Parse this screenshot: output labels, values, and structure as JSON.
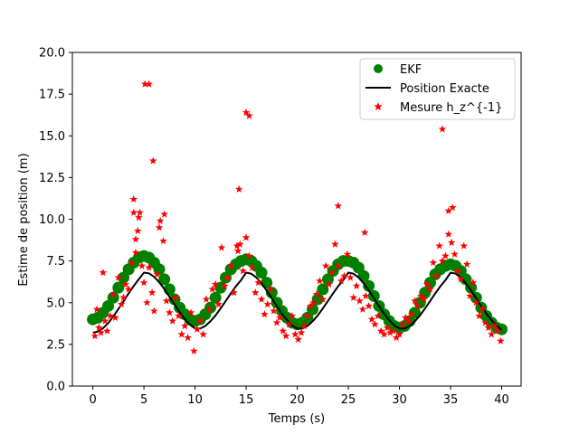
{
  "chart_data": {
    "type": "scatter",
    "title": "",
    "xlabel": "Temps (s)",
    "ylabel": "Estime de position (m)",
    "xlim": [
      -2,
      41.9
    ],
    "ylim": [
      0,
      20
    ],
    "x_ticks": [
      0,
      5,
      10,
      15,
      20,
      25,
      30,
      35,
      40
    ],
    "y_ticks": [
      0.0,
      2.5,
      5.0,
      7.5,
      10.0,
      12.5,
      15.0,
      17.5,
      20.0
    ],
    "x_tick_labels": [
      "0",
      "5",
      "10",
      "15",
      "20",
      "25",
      "30",
      "35",
      "40"
    ],
    "y_tick_labels": [
      "0.0",
      "2.5",
      "5.0",
      "7.5",
      "10.0",
      "12.5",
      "15.0",
      "17.5",
      "20.0"
    ],
    "grid": false,
    "legend_position": "top-right",
    "series": [
      {
        "name": "EKF",
        "kind": "scatter",
        "marker": "circle",
        "color": "#008000",
        "x": [
          0.0,
          0.5,
          1.0,
          1.5,
          2.0,
          2.5,
          3.0,
          3.5,
          4.0,
          4.5,
          5.0,
          5.5,
          6.0,
          6.5,
          7.0,
          7.5,
          8.0,
          8.5,
          9.0,
          9.5,
          10.0,
          10.5,
          11.0,
          11.5,
          12.0,
          12.5,
          13.0,
          13.5,
          14.0,
          14.5,
          15.0,
          15.5,
          16.0,
          16.5,
          17.0,
          17.5,
          18.0,
          18.5,
          19.0,
          19.5,
          20.0,
          20.5,
          21.0,
          21.5,
          22.0,
          22.5,
          23.0,
          23.5,
          24.0,
          24.5,
          25.0,
          25.5,
          26.0,
          26.5,
          27.0,
          27.5,
          28.0,
          28.5,
          29.0,
          29.5,
          30.0,
          30.5,
          31.0,
          31.5,
          32.0,
          32.5,
          33.0,
          33.5,
          34.0,
          34.5,
          35.0,
          35.5,
          36.0,
          36.5,
          37.0,
          37.5,
          38.0,
          38.5,
          39.0,
          39.5,
          40.0
        ],
        "y": [
          4.0,
          4.1,
          4.4,
          4.8,
          5.3,
          5.9,
          6.5,
          7.0,
          7.4,
          7.7,
          7.8,
          7.7,
          7.4,
          7.0,
          6.4,
          5.8,
          5.2,
          4.7,
          4.3,
          4.0,
          3.9,
          4.0,
          4.3,
          4.7,
          5.3,
          5.9,
          6.5,
          7.0,
          7.3,
          7.5,
          7.6,
          7.5,
          7.2,
          6.8,
          6.2,
          5.6,
          5.0,
          4.5,
          4.1,
          3.8,
          3.7,
          3.8,
          4.1,
          4.6,
          5.2,
          5.8,
          6.4,
          6.9,
          7.3,
          7.5,
          7.5,
          7.4,
          7.1,
          6.6,
          6.0,
          5.4,
          4.8,
          4.3,
          3.9,
          3.6,
          3.5,
          3.6,
          3.9,
          4.4,
          5.0,
          5.6,
          6.2,
          6.7,
          7.0,
          7.2,
          7.3,
          7.2,
          6.9,
          6.4,
          5.9,
          5.3,
          4.7,
          4.2,
          3.8,
          3.5,
          3.4
        ]
      },
      {
        "name": "Position Exacte",
        "kind": "line",
        "color": "#000000",
        "x": [
          0.0,
          0.5,
          1.0,
          1.5,
          2.0,
          2.5,
          3.0,
          3.5,
          4.0,
          4.5,
          5.0,
          5.5,
          6.0,
          6.5,
          7.0,
          7.5,
          8.0,
          8.5,
          9.0,
          9.5,
          10.0,
          10.5,
          11.0,
          11.5,
          12.0,
          12.5,
          13.0,
          13.5,
          14.0,
          14.5,
          15.0,
          15.5,
          16.0,
          16.5,
          17.0,
          17.5,
          18.0,
          18.5,
          19.0,
          19.5,
          20.0,
          20.5,
          21.0,
          21.5,
          22.0,
          22.5,
          23.0,
          23.5,
          24.0,
          24.5,
          25.0,
          25.5,
          26.0,
          26.5,
          27.0,
          27.5,
          28.0,
          28.5,
          29.0,
          29.5,
          30.0,
          30.5,
          31.0,
          31.5,
          32.0,
          32.5,
          33.0,
          33.5,
          34.0,
          34.5,
          35.0,
          35.5,
          36.0,
          36.5,
          37.0,
          37.5,
          38.0,
          38.5,
          39.0,
          39.5,
          40.0
        ],
        "y": [
          3.2,
          3.27,
          3.47,
          3.77,
          4.17,
          4.62,
          5.08,
          5.55,
          6.0,
          6.41,
          6.8,
          6.76,
          6.55,
          6.22,
          5.82,
          5.35,
          4.89,
          4.43,
          4.02,
          3.68,
          3.45,
          3.45,
          3.6,
          3.88,
          4.23,
          4.65,
          5.1,
          5.55,
          5.98,
          6.35,
          6.8,
          6.74,
          6.51,
          6.16,
          5.73,
          5.26,
          4.79,
          4.34,
          3.95,
          3.63,
          3.45,
          3.45,
          3.6,
          3.88,
          4.23,
          4.65,
          5.1,
          5.55,
          5.98,
          6.35,
          6.8,
          6.74,
          6.51,
          6.16,
          5.73,
          5.26,
          4.79,
          4.34,
          3.95,
          3.63,
          3.45,
          3.45,
          3.6,
          3.88,
          4.23,
          4.65,
          5.1,
          5.55,
          5.98,
          6.35,
          6.8,
          6.74,
          6.51,
          6.16,
          5.73,
          5.26,
          4.79,
          4.34,
          3.95,
          3.63,
          3.35
        ]
      },
      {
        "name": "Mesure h_z^{-1}",
        "kind": "scatter",
        "marker": "star",
        "color": "#ff0000",
        "x": [
          0.2,
          0.4,
          0.6,
          0.8,
          1.0,
          1.2,
          1.4,
          1.7,
          2.0,
          2.2,
          2.5,
          2.8,
          3.0,
          3.2,
          3.5,
          3.8,
          4.0,
          4.2,
          4.4,
          4.6,
          4.8,
          5.0,
          5.3,
          5.5,
          5.8,
          6.0,
          6.3,
          6.6,
          6.9,
          7.2,
          7.5,
          7.8,
          8.1,
          8.4,
          8.7,
          9.0,
          9.3,
          9.6,
          9.9,
          10.2,
          10.5,
          10.8,
          11.1,
          11.4,
          11.7,
          12.0,
          12.3,
          12.6,
          12.9,
          13.2,
          13.5,
          13.8,
          14.1,
          14.4,
          14.7,
          15.0,
          15.3,
          15.6,
          15.9,
          16.2,
          16.5,
          16.8,
          17.1,
          17.4,
          17.7,
          18.0,
          18.3,
          18.6,
          18.9,
          19.2,
          19.5,
          19.8,
          20.1,
          20.4,
          20.7,
          21.0,
          21.3,
          21.6,
          21.9,
          22.2,
          22.5,
          22.8,
          23.1,
          23.4,
          23.7,
          24.0,
          24.3,
          24.6,
          24.9,
          25.2,
          25.5,
          25.8,
          26.1,
          26.4,
          26.7,
          27.0,
          27.3,
          27.6,
          27.9,
          28.2,
          28.5,
          28.8,
          29.1,
          29.4,
          29.7,
          30.0,
          30.3,
          30.6,
          30.9,
          31.2,
          31.5,
          31.8,
          32.1,
          32.4,
          32.7,
          33.0,
          33.3,
          33.6,
          33.9,
          34.2,
          34.5,
          34.8,
          35.1,
          35.4,
          35.7,
          36.0,
          36.3,
          36.6,
          36.9,
          37.2,
          37.5,
          37.8,
          38.1,
          38.4,
          38.7,
          39.0,
          39.3,
          39.6,
          39.9,
          5.1,
          5.5,
          5.9,
          15.0,
          15.3,
          14.3,
          4.0,
          4.5,
          6.5,
          7.0,
          24.0,
          26.6,
          34.2,
          34.8,
          35.2,
          4.2,
          14.2
        ],
        "y": [
          3.0,
          4.6,
          3.5,
          3.2,
          6.8,
          3.9,
          3.3,
          4.2,
          5.5,
          4.1,
          6.5,
          4.9,
          5.3,
          6.1,
          5.8,
          7.4,
          10.4,
          8.0,
          9.3,
          10.4,
          7.2,
          6.2,
          5.0,
          7.1,
          5.6,
          4.5,
          6.7,
          9.9,
          8.7,
          5.1,
          4.4,
          3.9,
          5.3,
          4.2,
          3.1,
          3.6,
          2.9,
          4.4,
          2.1,
          3.4,
          3.9,
          3.1,
          5.2,
          4.6,
          5.8,
          6.1,
          4.9,
          8.3,
          6.0,
          6.5,
          7.2,
          5.6,
          8.4,
          8.5,
          6.9,
          8.9,
          7.8,
          7.1,
          5.6,
          6.2,
          5.2,
          4.3,
          4.9,
          5.8,
          4.5,
          3.8,
          4.1,
          3.3,
          3.0,
          3.7,
          4.2,
          3.1,
          2.8,
          3.2,
          3.6,
          4.2,
          4.8,
          5.0,
          5.5,
          6.3,
          5.2,
          7.2,
          6.1,
          6.8,
          8.5,
          7.2,
          6.3,
          6.6,
          7.9,
          6.5,
          5.3,
          6.0,
          5.1,
          4.6,
          5.4,
          4.8,
          4.0,
          3.7,
          4.2,
          3.3,
          3.1,
          3.5,
          3.2,
          3.3,
          2.9,
          3.1,
          3.7,
          4.1,
          3.9,
          4.3,
          5.1,
          4.8,
          5.4,
          5.2,
          6.1,
          5.8,
          7.4,
          6.6,
          8.4,
          7.5,
          7.8,
          9.1,
          8.6,
          7.9,
          6.9,
          6.4,
          8.4,
          7.3,
          5.4,
          6.2,
          5.0,
          4.2,
          4.6,
          3.8,
          3.5,
          3.1,
          3.6,
          3.3,
          2.7,
          18.1,
          18.1,
          13.5,
          16.4,
          16.2,
          11.8,
          11.2,
          10.1,
          9.5,
          10.3,
          10.8,
          9.2,
          15.4,
          10.5,
          10.7,
          8.8,
          8.1
        ]
      }
    ]
  }
}
